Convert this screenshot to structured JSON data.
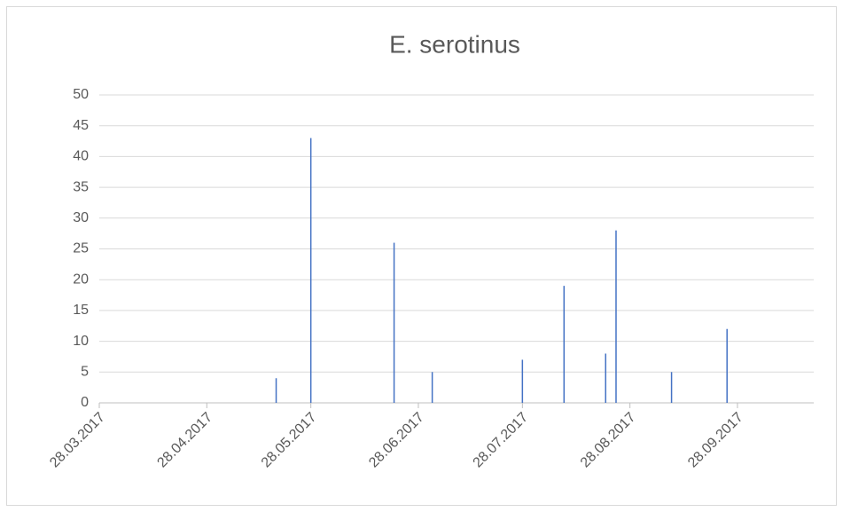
{
  "chart_data": {
    "type": "bar",
    "title": "E. serotinus",
    "x": [
      "18.05.2017",
      "28.05.2017",
      "21.06.2017",
      "02.07.2017",
      "28.07.2017",
      "09.08.2017",
      "21.08.2017",
      "24.08.2017",
      "09.09.2017",
      "25.09.2017"
    ],
    "values": [
      4,
      43,
      26,
      5,
      7,
      19,
      8,
      28,
      5,
      12
    ],
    "color": "#4472c4",
    "xlim": [
      "28.03.2017",
      "20.10.2017"
    ],
    "xticks": [
      "28.03.2017",
      "28.04.2017",
      "28.05.2017",
      "28.06.2017",
      "28.07.2017",
      "28.08.2017",
      "28.09.2017"
    ],
    "ylim": [
      0,
      50
    ],
    "yticks": [
      0,
      5,
      10,
      15,
      20,
      25,
      30,
      35,
      40,
      45,
      50
    ],
    "grid": true
  }
}
